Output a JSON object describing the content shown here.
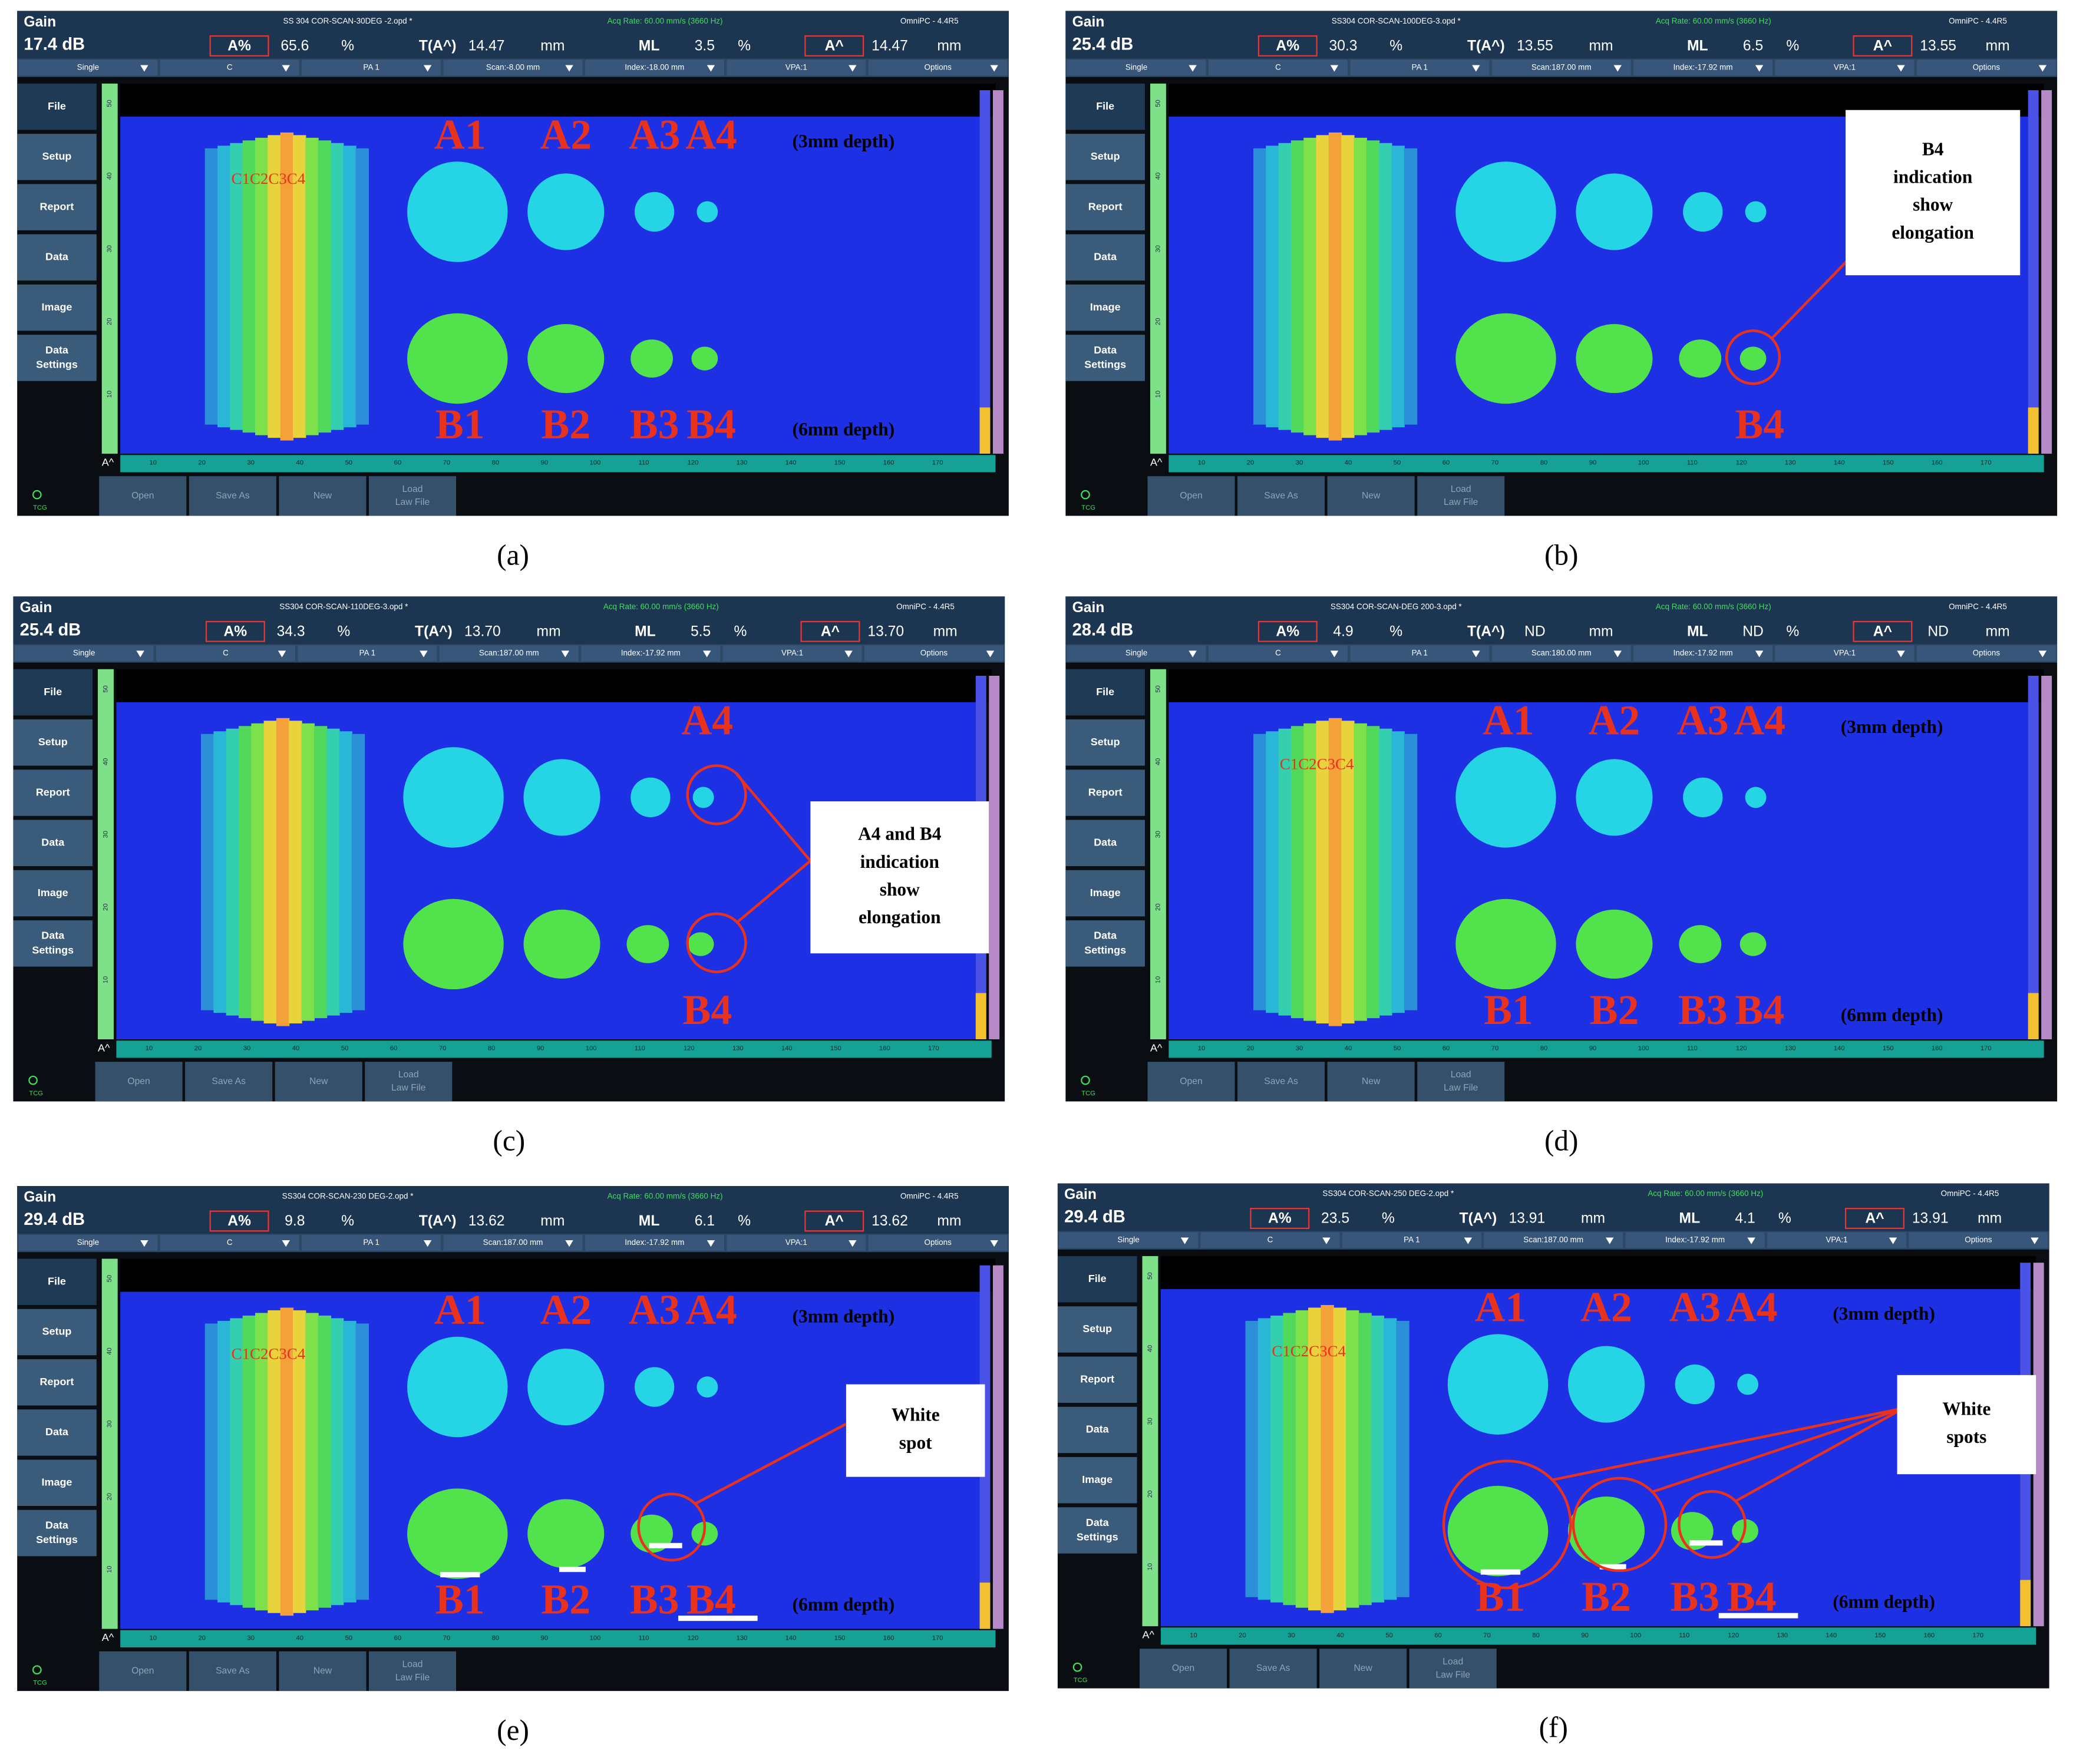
{
  "side_menu": [
    [
      "File"
    ],
    [
      "Setup"
    ],
    [
      "Report"
    ],
    [
      "Data"
    ],
    [
      "Image"
    ],
    [
      "Data",
      "Settings"
    ]
  ],
  "bottom_buttons": [
    [
      "Open"
    ],
    [
      "Save As"
    ],
    [
      "New"
    ],
    [
      "Load",
      "Law File"
    ]
  ],
  "ruler_corner": "A^",
  "tcg": "TCG",
  "scan_ruler": [
    "10",
    "20",
    "30",
    "40",
    "50",
    "60",
    "70",
    "80",
    "90",
    "100",
    "110",
    "120",
    "130",
    "140",
    "150",
    "160",
    "170"
  ],
  "index_ruler": [
    "50",
    "40",
    "30",
    "20",
    "10"
  ],
  "panels": [
    {
      "caption": "(a)",
      "gain_label": "Gain",
      "gain": "17.4 dB",
      "file": "SS 304 COR-SCAN-30DEG -2.opd *",
      "acq": "Acq Rate: 60.00 mm/s (3660 Hz)",
      "software": "OmniPC - 4.4R5",
      "readings": [
        {
          "label": "A%",
          "value": "65.6",
          "unit": "%",
          "boxed": true
        },
        {
          "label": "T(A^)",
          "value": "14.47",
          "unit": "mm",
          "boxed": false
        },
        {
          "label": "ML",
          "value": "3.5",
          "unit": "%",
          "boxed": false
        },
        {
          "label": "A^",
          "value": "14.47",
          "unit": "mm",
          "boxed": true
        }
      ],
      "toolbar": [
        "Single",
        "C",
        "PA 1",
        "Scan:-8.00 mm",
        "Index:-18.00 mm",
        "VPA:1",
        "Options"
      ],
      "top_labels": [
        "A1",
        "A2",
        "A3",
        "A4"
      ],
      "bottom_labels": [
        "B1",
        "B2",
        "B3",
        "B4"
      ],
      "depth_top": "(3mm depth)",
      "depth_bottom": "(6mm depth)",
      "c_label": "C1C2C3C4",
      "callout": null
    },
    {
      "caption": "(b)",
      "gain_label": "Gain",
      "gain": "25.4 dB",
      "file": "SS304 COR-SCAN-100DEG-3.opd *",
      "acq": "Acq Rate: 60.00 mm/s (3660 Hz)",
      "software": "OmniPC - 4.4R5",
      "readings": [
        {
          "label": "A%",
          "value": "30.3",
          "unit": "%",
          "boxed": true
        },
        {
          "label": "T(A^)",
          "value": "13.55",
          "unit": "mm",
          "boxed": false
        },
        {
          "label": "ML",
          "value": "6.5",
          "unit": "%",
          "boxed": false
        },
        {
          "label": "A^",
          "value": "13.55",
          "unit": "mm",
          "boxed": true
        }
      ],
      "toolbar": [
        "Single",
        "C",
        "PA 1",
        "Scan:187.00 mm",
        "Index:-17.92 mm",
        "VPA:1",
        "Options"
      ],
      "top_labels": [
        null,
        null,
        null,
        null
      ],
      "bottom_labels": [
        null,
        null,
        null,
        "B4"
      ],
      "depth_top": null,
      "depth_bottom": null,
      "c_label": null,
      "callout": [
        "B4",
        "indication",
        "show",
        "elongation"
      ]
    },
    {
      "caption": "(c)",
      "gain_label": "Gain",
      "gain": "25.4 dB",
      "file": "SS304 COR-SCAN-110DEG-3.opd *",
      "acq": "Acq Rate: 60.00 mm/s (3660 Hz)",
      "software": "OmniPC - 4.4R5",
      "readings": [
        {
          "label": "A%",
          "value": "34.3",
          "unit": "%",
          "boxed": true
        },
        {
          "label": "T(A^)",
          "value": "13.70",
          "unit": "mm",
          "boxed": false
        },
        {
          "label": "ML",
          "value": "5.5",
          "unit": "%",
          "boxed": false
        },
        {
          "label": "A^",
          "value": "13.70",
          "unit": "mm",
          "boxed": true
        }
      ],
      "toolbar": [
        "Single",
        "C",
        "PA 1",
        "Scan:187.00 mm",
        "Index:-17.92 mm",
        "VPA:1",
        "Options"
      ],
      "top_labels": [
        null,
        null,
        null,
        "A4"
      ],
      "bottom_labels": [
        null,
        null,
        null,
        "B4"
      ],
      "depth_top": null,
      "depth_bottom": null,
      "c_label": null,
      "callout": [
        "A4 and B4",
        "indication",
        "show",
        "elongation"
      ]
    },
    {
      "caption": "(d)",
      "gain_label": "Gain",
      "gain": "28.4 dB",
      "file": "SS304 COR-SCAN-DEG 200-3.opd *",
      "acq": "Acq Rate: 60.00 mm/s (3660 Hz)",
      "software": "OmniPC - 4.4R5",
      "readings": [
        {
          "label": "A%",
          "value": "4.9",
          "unit": "%",
          "boxed": true
        },
        {
          "label": "T(A^)",
          "value": "ND",
          "unit": "mm",
          "boxed": false
        },
        {
          "label": "ML",
          "value": "ND",
          "unit": "%",
          "boxed": false
        },
        {
          "label": "A^",
          "value": "ND",
          "unit": "mm",
          "boxed": true
        }
      ],
      "toolbar": [
        "Single",
        "C",
        "PA 1",
        "Scan:180.00 mm",
        "Index:-17.92 mm",
        "VPA:1",
        "Options"
      ],
      "top_labels": [
        "A1",
        "A2",
        "A3",
        "A4"
      ],
      "bottom_labels": [
        "B1",
        "B2",
        "B3",
        "B4"
      ],
      "depth_top": "(3mm depth)",
      "depth_bottom": "(6mm depth)",
      "c_label": "C1C2C3C4",
      "callout": null
    },
    {
      "caption": "(e)",
      "gain_label": "Gain",
      "gain": "29.4 dB",
      "file": "SS304 COR-SCAN-230 DEG-2.opd *",
      "acq": "Acq Rate: 60.00 mm/s (3660 Hz)",
      "software": "OmniPC - 4.4R5",
      "readings": [
        {
          "label": "A%",
          "value": "9.8",
          "unit": "%",
          "boxed": true
        },
        {
          "label": "T(A^)",
          "value": "13.62",
          "unit": "mm",
          "boxed": false
        },
        {
          "label": "ML",
          "value": "6.1",
          "unit": "%",
          "boxed": false
        },
        {
          "label": "A^",
          "value": "13.62",
          "unit": "mm",
          "boxed": true
        }
      ],
      "toolbar": [
        "Single",
        "C",
        "PA 1",
        "Scan:187.00 mm",
        "Index:-17.92 mm",
        "VPA:1",
        "Options"
      ],
      "top_labels": [
        "A1",
        "A2",
        "A3",
        "A4"
      ],
      "bottom_labels": [
        "B1",
        "B2",
        "B3",
        "B4"
      ],
      "depth_top": "(3mm depth)",
      "depth_bottom": "(6mm depth)",
      "c_label": "C1C2C3C4",
      "callout": [
        "White",
        "spot"
      ]
    },
    {
      "caption": "(f)",
      "gain_label": "Gain",
      "gain": "29.4 dB",
      "file": "SS304 COR-SCAN-250 DEG-2.opd *",
      "acq": "Acq Rate: 60.00 mm/s (3660 Hz)",
      "software": "OmniPC - 4.4R5",
      "readings": [
        {
          "label": "A%",
          "value": "23.5",
          "unit": "%",
          "boxed": true
        },
        {
          "label": "T(A^)",
          "value": "13.91",
          "unit": "mm",
          "boxed": false
        },
        {
          "label": "ML",
          "value": "4.1",
          "unit": "%",
          "boxed": false
        },
        {
          "label": "A^",
          "value": "13.91",
          "unit": "mm",
          "boxed": true
        }
      ],
      "toolbar": [
        "Single",
        "C",
        "PA 1",
        "Scan:187.00 mm",
        "Index:-17.92 mm",
        "VPA:1",
        "Options"
      ],
      "top_labels": [
        "A1",
        "A2",
        "A3",
        "A4"
      ],
      "bottom_labels": [
        "B1",
        "B2",
        "B3",
        "B4"
      ],
      "depth_top": "(3mm depth)",
      "depth_bottom": "(6mm depth)",
      "c_label": "C1C2C3C4",
      "callout": [
        "White",
        "spots"
      ]
    }
  ]
}
